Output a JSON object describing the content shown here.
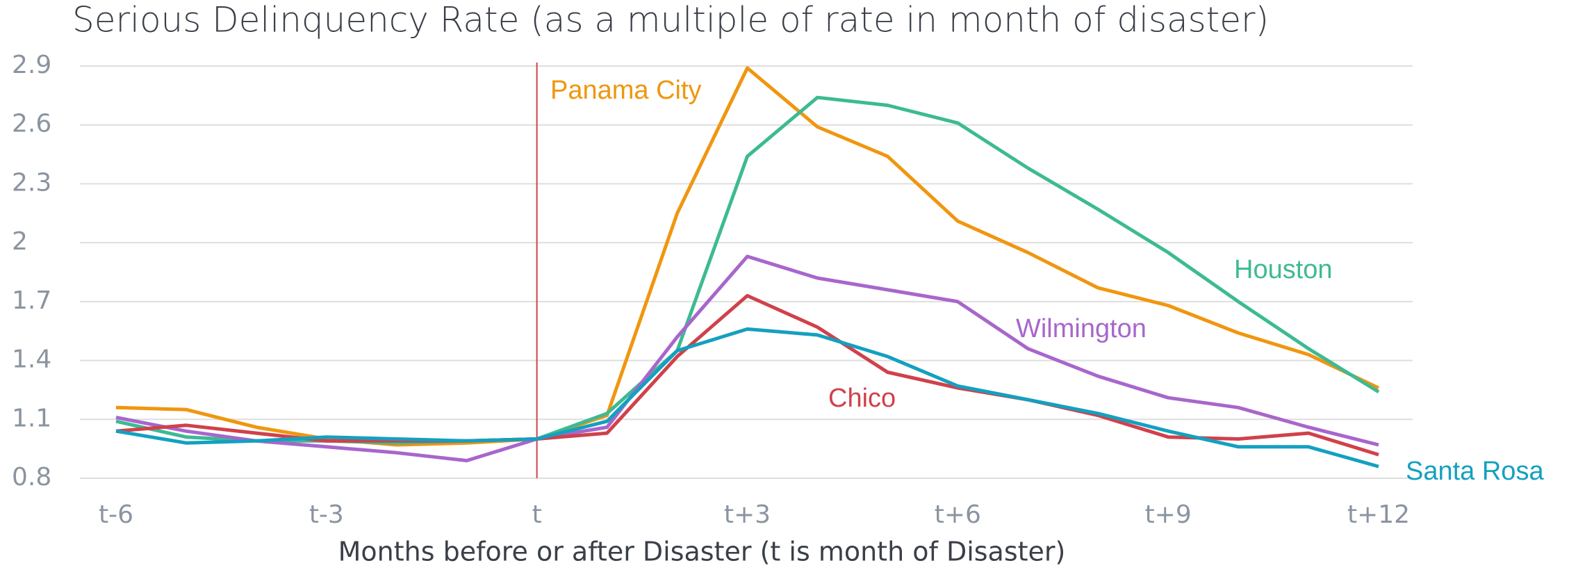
{
  "chart_data": {
    "type": "line",
    "title": "Serious Delinquency Rate (as a multiple of rate in month of disaster)",
    "x_label": "Months before or after Disaster (t is month of Disaster)",
    "categories": [
      "t-6",
      null,
      null,
      "t-3",
      null,
      null,
      "t",
      null,
      null,
      "t+3",
      null,
      null,
      "t+6",
      null,
      null,
      "t+9",
      null,
      null,
      "t+12"
    ],
    "ylim": [
      0.8,
      2.9
    ],
    "yticks": [
      0.8,
      1.1,
      1.4,
      1.7,
      2.0,
      2.3,
      2.6,
      2.9
    ],
    "grid": true,
    "series": [
      {
        "name": "Panama City",
        "color": "#f0960f",
        "values": [
          1.16,
          1.15,
          1.06,
          1.0,
          0.97,
          0.98,
          1.0,
          1.12,
          2.15,
          2.89,
          2.59,
          2.44,
          2.11,
          1.95,
          1.77,
          1.68,
          1.54,
          1.43,
          1.26
        ]
      },
      {
        "name": "Houston",
        "color": "#3dba93",
        "values": [
          1.09,
          1.01,
          0.99,
          0.99,
          0.98,
          0.99,
          1.0,
          1.13,
          1.45,
          2.44,
          2.74,
          2.7,
          2.61,
          2.38,
          2.17,
          1.95,
          1.7,
          1.46,
          1.24
        ]
      },
      {
        "name": "Wilmington",
        "color": "#a866cc",
        "values": [
          1.11,
          1.04,
          0.99,
          0.96,
          0.93,
          0.89,
          1.0,
          1.06,
          1.52,
          1.93,
          1.82,
          1.76,
          1.7,
          1.46,
          1.32,
          1.21,
          1.16,
          1.06,
          0.97
        ]
      },
      {
        "name": "Chico",
        "color": "#d0414b",
        "values": [
          1.04,
          1.07,
          1.03,
          0.99,
          0.99,
          0.99,
          1.0,
          1.03,
          1.42,
          1.73,
          1.57,
          1.34,
          1.26,
          1.2,
          1.12,
          1.01,
          1.0,
          1.03,
          0.92
        ]
      },
      {
        "name": "Santa Rosa",
        "color": "#14a0c0",
        "values": [
          1.04,
          0.98,
          0.99,
          1.01,
          1.0,
          0.99,
          1.0,
          1.09,
          1.45,
          1.56,
          1.53,
          1.42,
          1.27,
          1.2,
          1.13,
          1.04,
          0.96,
          0.96,
          0.86
        ]
      }
    ]
  }
}
